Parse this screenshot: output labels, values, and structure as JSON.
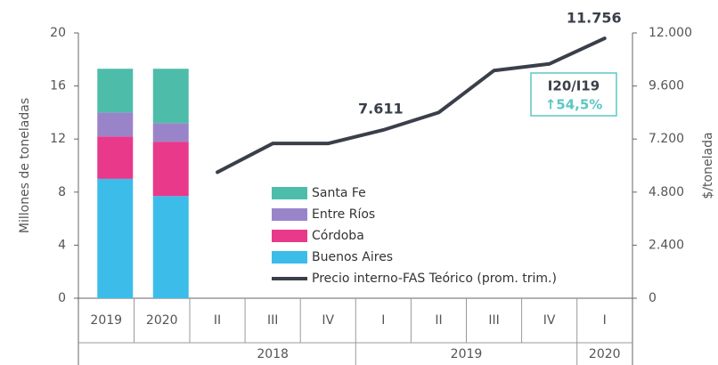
{
  "chart_data": [
    {
      "type": "bar",
      "stacked": true,
      "ylabel": "Millones de toneladas",
      "categories": [
        "2019",
        "2020"
      ],
      "series": [
        {
          "name": "Buenos Aires",
          "color": "#3cbde9",
          "values": [
            9.0,
            7.7
          ]
        },
        {
          "name": "Córdoba",
          "color": "#e8398a",
          "values": [
            3.2,
            4.1
          ]
        },
        {
          "name": "Entre Ríos",
          "color": "#9a84c9",
          "values": [
            1.8,
            1.4
          ]
        },
        {
          "name": "Santa Fe",
          "color": "#4dbdaa",
          "values": [
            3.3,
            4.1
          ]
        }
      ],
      "ylim": [
        0,
        20
      ],
      "yticks": [
        0,
        4,
        8,
        12,
        16,
        20
      ]
    },
    {
      "type": "line",
      "y2label": "$/tonelada",
      "groups": [
        {
          "label": "2018",
          "categories": [
            "II",
            "III",
            "IV"
          ]
        },
        {
          "label": "2019",
          "categories": [
            "I",
            "II",
            "III",
            "IV"
          ]
        },
        {
          "label": "2020",
          "categories": [
            "I"
          ]
        }
      ],
      "series": [
        {
          "name": "Precio interno-FAS Teórico (prom. trim.)",
          "color": "#3a3f4a",
          "axis": "y2",
          "values": [
            5700,
            7000,
            7000,
            7611,
            8400,
            10300,
            10600,
            11756
          ],
          "value_labels": [
            null,
            null,
            null,
            "7.611",
            null,
            null,
            null,
            "11.756"
          ]
        }
      ],
      "y2lim": [
        0,
        12000
      ],
      "y2ticks": [
        0,
        {
          "value": 2400,
          "label": "2.400"
        },
        {
          "value": 4800,
          "label": "4.800"
        },
        {
          "value": 7200,
          "label": "7.200"
        },
        {
          "value": 9600,
          "label": "9.600"
        },
        {
          "value": 12000,
          "label": "12.000"
        }
      ],
      "annotation": {
        "title": "I20/I19",
        "text": "↑54,5%"
      }
    }
  ]
}
